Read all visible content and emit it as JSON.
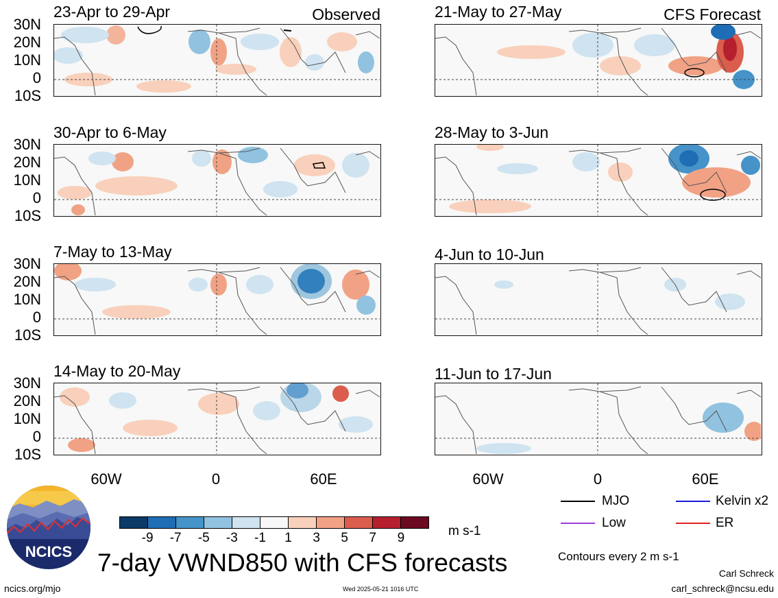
{
  "panels_left": [
    {
      "title": "23-Apr to 29-Apr",
      "tag": "Observed"
    },
    {
      "title": "30-Apr to 6-May",
      "tag": ""
    },
    {
      "title": "7-May to 13-May",
      "tag": ""
    },
    {
      "title": "14-May to 20-May",
      "tag": ""
    }
  ],
  "panels_right": [
    {
      "title": "21-May to 27-May",
      "tag": "CFS Forecast"
    },
    {
      "title": "28-May to 3-Jun",
      "tag": ""
    },
    {
      "title": "4-Jun to 10-Jun",
      "tag": ""
    },
    {
      "title": "11-Jun to 17-Jun",
      "tag": ""
    }
  ],
  "lat_labels": [
    "30N",
    "20N",
    "10N",
    "0",
    "10S"
  ],
  "lon_labels": [
    "60W",
    "0",
    "60E"
  ],
  "colorbar": {
    "labels": [
      "-9",
      "-7",
      "-5",
      "-3",
      "-1",
      "1",
      "3",
      "5",
      "7",
      "9"
    ],
    "colors": [
      "#0b3a66",
      "#1f6db4",
      "#4593c8",
      "#91c2e0",
      "#cfe3f0",
      "#f7f8f7",
      "#f9d0bb",
      "#f1a285",
      "#da5d4d",
      "#b61f2e",
      "#6b0a22"
    ],
    "units": "m s-1"
  },
  "legend": {
    "items": [
      {
        "label": "MJO",
        "color": "#000000"
      },
      {
        "label": "Kelvin x2",
        "color": "#1a1adc"
      },
      {
        "label": "Low",
        "color": "#9a3ddc"
      },
      {
        "label": "ER",
        "color": "#e02020"
      }
    ],
    "contours_note": "Contours every 2 m s-1"
  },
  "main_title": "7-day VWND850 with CFS forecasts",
  "logo_text": "NCICS",
  "footer": {
    "url": "ncics.org/mjo",
    "timestamp": "Wed 2025-05-21 1016 UTC",
    "author": "Carl Schreck",
    "email": "carl_schreck@ncsu.edu"
  }
}
